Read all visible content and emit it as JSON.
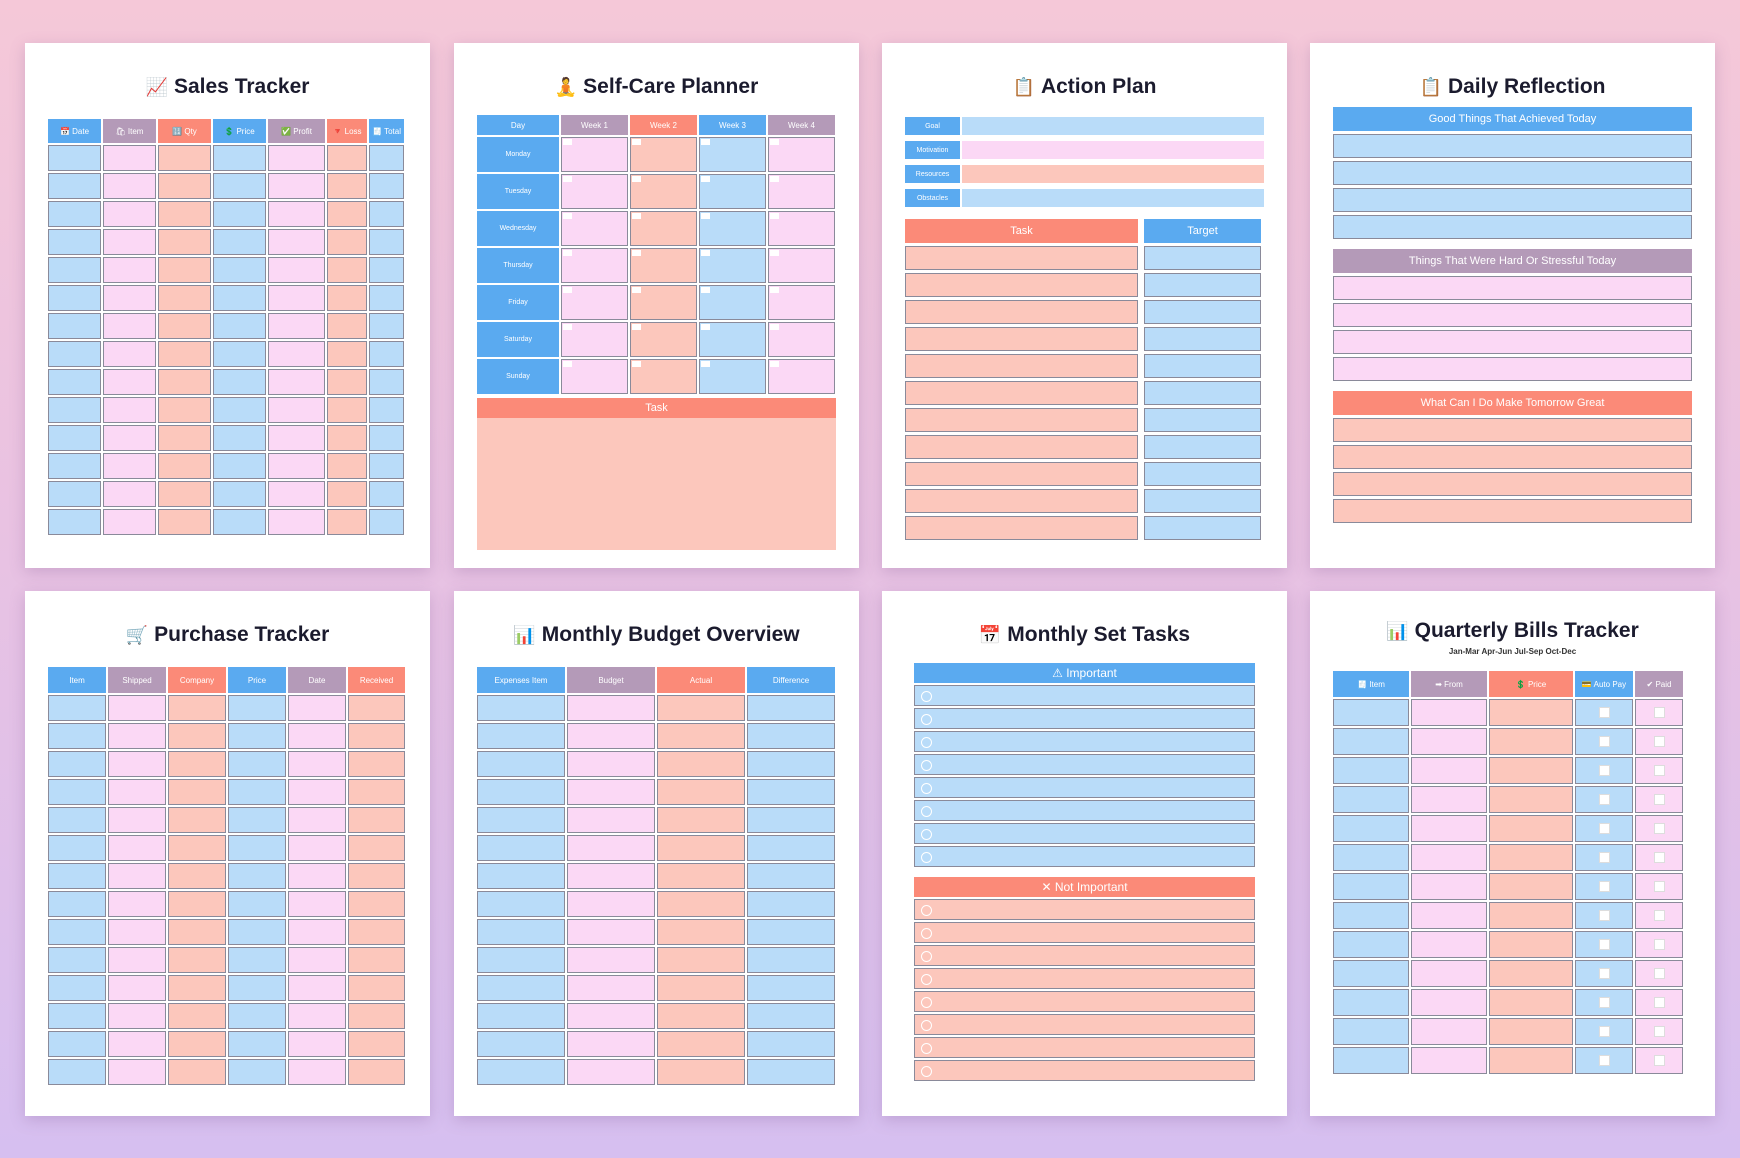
{
  "sales": {
    "title": "Sales Tracker",
    "icon": "📈",
    "headers": [
      "📅 Date",
      "🛍 Item",
      "🔢 Qty",
      "💲 Price",
      "✅ Profit",
      "🔻 Loss",
      "🧾 Total"
    ]
  },
  "selfcare": {
    "title": "Self-Care Planner",
    "icon": "🧘",
    "headers": [
      "Day",
      "Week 1",
      "Week 2",
      "Week 3",
      "Week 4"
    ],
    "days": [
      "Monday",
      "Tuesday",
      "Wednesday",
      "Thursday",
      "Friday",
      "Saturday",
      "Sunday"
    ],
    "task": "Task"
  },
  "action": {
    "title": "Action Plan",
    "icon": "📋",
    "rows": [
      "Goal",
      "Motivation",
      "Resources",
      "Obstacles"
    ],
    "task": "Task",
    "target": "Target"
  },
  "reflection": {
    "title": "Daily Reflection",
    "icon": "📋",
    "sections": [
      "Good Things That Achieved Today",
      "Things That Were Hard Or Stressful Today",
      "What Can I Do Make Tomorrow Great"
    ]
  },
  "purchase": {
    "title": "Purchase Tracker",
    "icon": "🛒",
    "headers": [
      "Item",
      "Shipped",
      "Company",
      "Price",
      "Date",
      "Received"
    ]
  },
  "budget": {
    "title": "Monthly Budget Overview",
    "icon": "📊",
    "headers": [
      "Expenses Item",
      "Budget",
      "Actual",
      "Difference"
    ]
  },
  "settasks": {
    "title": "Monthly Set Tasks",
    "icon": "📅",
    "important": "⚠ Important",
    "not_important": "✕ Not Important"
  },
  "bills": {
    "title": "Quarterly Bills Tracker",
    "icon": "📊",
    "subtitle": "Jan-Mar Apr-Jun Jul-Sep Oct-Dec",
    "headers": [
      "🧾 Item",
      "➡ From",
      "💲 Price",
      "💳 Auto Pay",
      "✔ Paid"
    ]
  },
  "colors": {
    "blue": "#5aaaf0",
    "mauve": "#b49ab8",
    "salmon": "#fb8a78",
    "light_blue": "#b9dcf9",
    "light_pink": "#fbd8f5",
    "light_salmon": "#fcc7bc"
  }
}
